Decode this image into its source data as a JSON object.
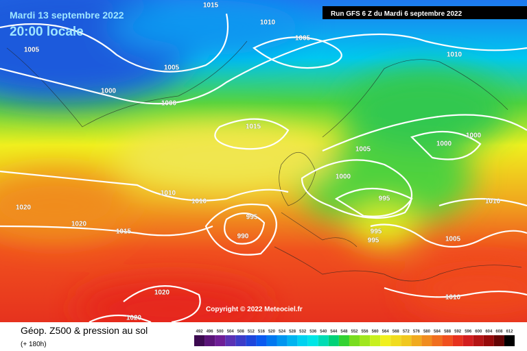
{
  "header": {
    "date": "Mardi 13 septembre 2022",
    "time": "20:00 locale",
    "run": "Run GFS 6 Z du Mardi 6 septembre 2022"
  },
  "isobar_labels": [
    "1015",
    "1010",
    "1005",
    "1005",
    "1005",
    "1010",
    "1000",
    "1000",
    "1015",
    "1005",
    "1000",
    "1000",
    "1000",
    "995",
    "1010",
    "1010",
    "1020",
    "1020",
    "1015",
    "995",
    "990",
    "995",
    "995",
    "1010",
    "1005",
    "1010",
    "1020",
    "1020"
  ],
  "copyright": "Copyright © 2022 Meteociel.fr",
  "legend": {
    "title": "Géop. Z500 & pression au sol",
    "lead": "(+ 180h)",
    "scale": [
      "492",
      "496",
      "500",
      "504",
      "508",
      "512",
      "516",
      "520",
      "524",
      "528",
      "532",
      "536",
      "540",
      "544",
      "548",
      "552",
      "556",
      "560",
      "564",
      "568",
      "572",
      "576",
      "580",
      "584",
      "588",
      "592",
      "596",
      "600",
      "604",
      "608",
      "612"
    ]
  }
}
